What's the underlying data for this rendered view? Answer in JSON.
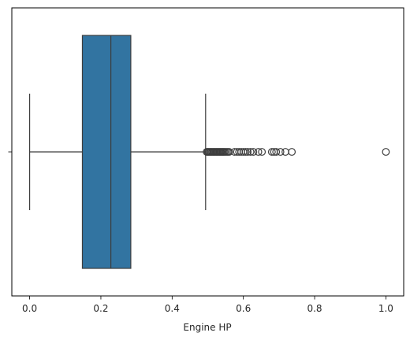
{
  "chart_data": {
    "type": "box",
    "orientation": "horizontal",
    "xlabel": "Engine HP",
    "ylabel": "",
    "xlim": [
      -0.05,
      1.05
    ],
    "xticks": [
      {
        "value": 0.0,
        "label": "0.0"
      },
      {
        "value": 0.2,
        "label": "0.2"
      },
      {
        "value": 0.4,
        "label": "0.4"
      },
      {
        "value": 0.6,
        "label": "0.6"
      },
      {
        "value": 0.8,
        "label": "0.8"
      },
      {
        "value": 1.0,
        "label": "1.0"
      }
    ],
    "grid": false,
    "box": {
      "whisker_low": 0.0,
      "q1": 0.148,
      "median": 0.228,
      "q3": 0.284,
      "whisker_high": 0.494,
      "fill_color": "#3274a1",
      "edge_color": "#3d3d3d"
    },
    "outliers": [
      0.497,
      0.5,
      0.503,
      0.506,
      0.509,
      0.512,
      0.515,
      0.518,
      0.521,
      0.524,
      0.527,
      0.53,
      0.533,
      0.536,
      0.539,
      0.542,
      0.545,
      0.548,
      0.552,
      0.556,
      0.56,
      0.575,
      0.582,
      0.588,
      0.594,
      0.6,
      0.606,
      0.612,
      0.62,
      0.628,
      0.642,
      0.652,
      0.68,
      0.686,
      0.692,
      0.704,
      0.718,
      0.736,
      1.0
    ]
  }
}
